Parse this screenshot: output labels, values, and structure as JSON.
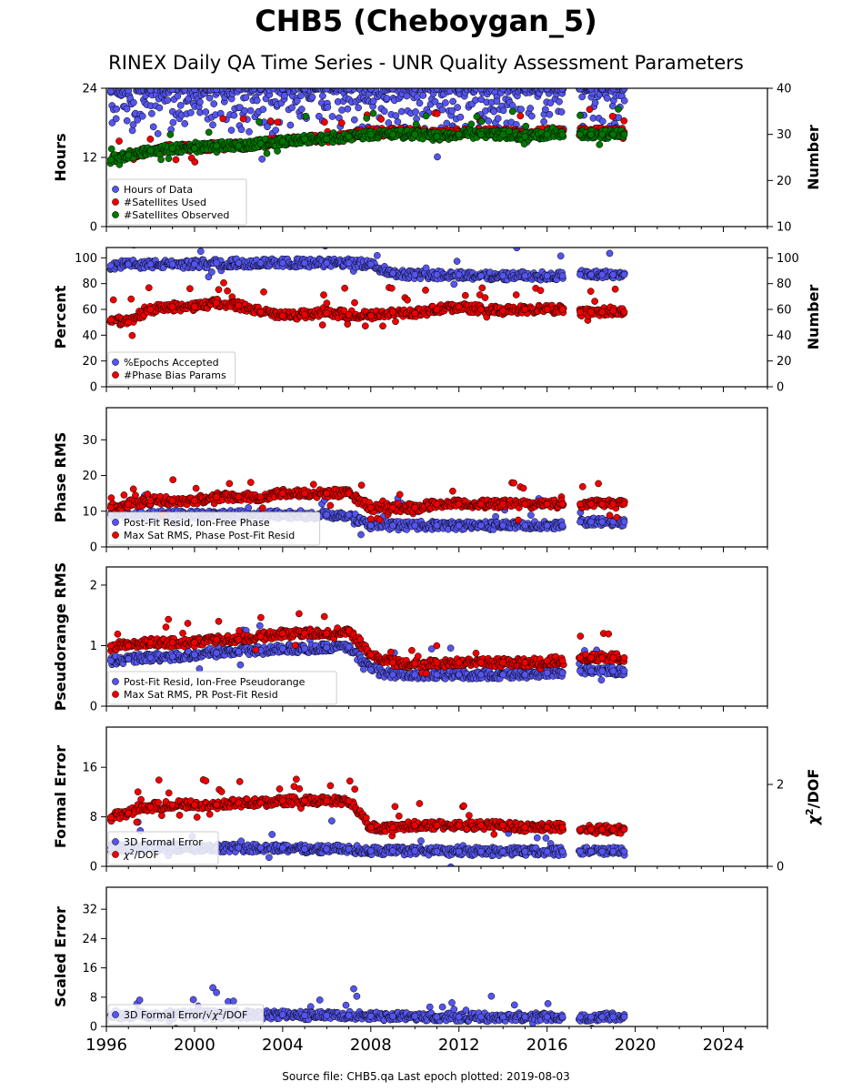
{
  "title": "CHB5 (Cheboygan_5)",
  "subtitle": "RINEX Daily QA Time Series - UNR Quality Assessment Parameters",
  "footer": "Source file: CHB5.qa Last epoch plotted: 2019-08-03",
  "colors": {
    "blue": "#5555ee",
    "red": "#ee0000",
    "green": "#007700"
  },
  "chart_data": [
    {
      "type": "scatter",
      "x_axis": {
        "range": [
          1996,
          2026
        ],
        "ticks": [
          1996,
          2000,
          2004,
          2008,
          2012,
          2016,
          2020,
          2024
        ]
      },
      "ylabel": "Hours",
      "ylim": [
        0,
        24
      ],
      "yticks": [
        0,
        12,
        24
      ],
      "ylabel_right": "Number",
      "ylim_right": [
        10,
        40
      ],
      "yticks_right": [
        10,
        20,
        30,
        40
      ],
      "legend": "lower-left",
      "series": [
        {
          "name": "Hours of Data",
          "color": "#5555ee",
          "axis": "left",
          "x": [
            1996.2,
            1997.0,
            1998.0,
            1999.0,
            2000.0,
            2001.0,
            2002.0,
            2003.0,
            2004.0,
            2005.0,
            2006.0,
            2007.0,
            2008.0,
            2009.0,
            2010.0,
            2011.0,
            2012.0,
            2013.0,
            2014.0,
            2015.0,
            2016.0,
            2016.7,
            2017.5,
            2018.0,
            2018.5,
            2019.0,
            2019.5
          ],
          "y": [
            23.5,
            23.6,
            23.7,
            23.8,
            23.8,
            23.8,
            23.9,
            23.9,
            23.9,
            23.9,
            23.9,
            23.9,
            23.9,
            23.9,
            23.9,
            23.9,
            23.9,
            23.9,
            23.9,
            23.9,
            23.9,
            23.9,
            23.9,
            23.9,
            23.9,
            23.9,
            23.9
          ]
        },
        {
          "name": "#Satellites Used",
          "color": "#ee0000",
          "axis": "right",
          "x": [
            1996.2,
            1997.0,
            1998.0,
            1999.0,
            2000.0,
            2001.0,
            2002.0,
            2003.0,
            2004.0,
            2005.0,
            2006.0,
            2007.0,
            2008.0,
            2009.0,
            2010.0,
            2011.0,
            2012.0,
            2013.0,
            2014.0,
            2015.0,
            2016.0,
            2016.7,
            2017.5,
            2018.0,
            2018.5,
            2019.0,
            2019.5
          ],
          "y": [
            24.5,
            25.5,
            26.5,
            27.0,
            27.0,
            27.5,
            27.5,
            28.0,
            28.5,
            29.0,
            29.0,
            29.5,
            30.5,
            30.5,
            30.5,
            30.0,
            30.5,
            30.5,
            30.5,
            30.0,
            30.5,
            30.5,
            30.5,
            30.5,
            30.5,
            30.5,
            30.5
          ]
        },
        {
          "name": "#Satellites Observed",
          "color": "#007700",
          "axis": "right",
          "x": [
            1996.2,
            1997.0,
            1998.0,
            1999.0,
            2000.0,
            2001.0,
            2002.0,
            2003.0,
            2004.0,
            2005.0,
            2006.0,
            2007.0,
            2008.0,
            2009.0,
            2010.0,
            2011.0,
            2012.0,
            2013.0,
            2014.0,
            2015.0,
            2016.0,
            2016.7,
            2017.5,
            2018.0,
            2018.5,
            2019.0,
            2019.5
          ],
          "y": [
            24.5,
            25.5,
            26.5,
            27.0,
            27.0,
            27.5,
            27.5,
            28.0,
            28.5,
            29.0,
            29.0,
            29.5,
            30.0,
            30.0,
            30.0,
            29.5,
            30.0,
            30.0,
            30.0,
            29.5,
            30.0,
            30.0,
            30.0,
            30.0,
            30.0,
            30.0,
            30.0
          ]
        }
      ]
    },
    {
      "type": "scatter",
      "ylabel": "Percent",
      "ylim": [
        0,
        108
      ],
      "yticks": [
        0,
        20,
        40,
        60,
        80,
        100
      ],
      "ylabel_right": "Number",
      "ylim_right": [
        0,
        108
      ],
      "yticks_right": [
        0,
        20,
        40,
        60,
        80,
        100
      ],
      "legend": "lower-left",
      "series": [
        {
          "name": "%Epochs Accepted",
          "color": "#5555ee",
          "axis": "left",
          "x": [
            1996.2,
            1997.0,
            1998.0,
            1999.0,
            2000.0,
            2001.0,
            2002.0,
            2003.0,
            2004.0,
            2005.0,
            2006.0,
            2007.0,
            2008.0,
            2009.0,
            2010.0,
            2011.0,
            2012.0,
            2013.0,
            2014.0,
            2015.0,
            2016.0,
            2016.7,
            2017.5,
            2018.0,
            2018.5,
            2019.0,
            2019.5
          ],
          "y": [
            94,
            95,
            95,
            95,
            95,
            96,
            96,
            96,
            96,
            96,
            96,
            96,
            95,
            88,
            87,
            87,
            87,
            86,
            86,
            86,
            86,
            86,
            87,
            87,
            87,
            87,
            87
          ]
        },
        {
          "name": "#Phase Bias Params",
          "color": "#ee0000",
          "axis": "right",
          "x": [
            1996.2,
            1997.0,
            1998.0,
            1999.0,
            2000.0,
            2001.0,
            2002.0,
            2003.0,
            2004.0,
            2005.0,
            2006.0,
            2007.0,
            2008.0,
            2009.0,
            2010.0,
            2011.0,
            2012.0,
            2013.0,
            2014.0,
            2015.0,
            2016.0,
            2016.7,
            2017.5,
            2018.0,
            2018.5,
            2019.0,
            2019.5
          ],
          "y": [
            52,
            50,
            60,
            62,
            62,
            65,
            63,
            58,
            55,
            56,
            57,
            56,
            55,
            58,
            57,
            60,
            62,
            60,
            59,
            60,
            60,
            60,
            58,
            58,
            58,
            59,
            58
          ]
        }
      ]
    },
    {
      "type": "scatter",
      "ylabel": "Phase RMS",
      "ylim": [
        0,
        39
      ],
      "yticks": [
        0,
        10,
        20,
        30
      ],
      "legend": "lower-left",
      "series": [
        {
          "name": "Post-Fit Resid, Ion-Free Phase",
          "color": "#5555ee",
          "x": [
            1996.2,
            1997.0,
            1998.0,
            1999.0,
            2000.0,
            2001.0,
            2002.0,
            2003.0,
            2004.0,
            2005.0,
            2006.0,
            2007.0,
            2008.0,
            2009.0,
            2010.0,
            2011.0,
            2012.0,
            2013.0,
            2014.0,
            2015.0,
            2016.0,
            2016.7,
            2017.5,
            2018.0,
            2018.5,
            2019.0,
            2019.5
          ],
          "y": [
            9,
            9,
            9,
            9,
            9,
            9,
            9,
            9,
            9,
            9,
            9,
            9,
            6,
            6,
            6,
            6,
            6,
            6,
            6,
            6,
            6,
            6,
            7,
            7,
            7,
            7,
            7
          ]
        },
        {
          "name": "Max Sat RMS, Phase Post-Fit Resid",
          "color": "#ee0000",
          "x": [
            1996.2,
            1997.0,
            1998.0,
            1999.0,
            2000.0,
            2001.0,
            2002.0,
            2003.0,
            2004.0,
            2005.0,
            2006.0,
            2007.0,
            2008.0,
            2009.0,
            2010.0,
            2011.0,
            2012.0,
            2013.0,
            2014.0,
            2015.0,
            2016.0,
            2016.7,
            2017.5,
            2018.0,
            2018.5,
            2019.0,
            2019.5
          ],
          "y": [
            11,
            12,
            13,
            13,
            13,
            14,
            14,
            14,
            15,
            15,
            15,
            15,
            11,
            11,
            11,
            12,
            12,
            12,
            12,
            12,
            12,
            12,
            12,
            12,
            12,
            12,
            12
          ]
        }
      ]
    },
    {
      "type": "scatter",
      "ylabel": "Pseudorange RMS",
      "ylim": [
        0,
        2.3
      ],
      "yticks": [
        0,
        1,
        2
      ],
      "legend": "lower-left",
      "series": [
        {
          "name": "Post-Fit Resid, Ion-Free Pseudorange",
          "color": "#5555ee",
          "x": [
            1996.2,
            1997.0,
            1998.0,
            1999.0,
            2000.0,
            2001.0,
            2002.0,
            2003.0,
            2004.0,
            2005.0,
            2006.0,
            2007.0,
            2008.0,
            2009.0,
            2010.0,
            2011.0,
            2012.0,
            2013.0,
            2014.0,
            2015.0,
            2016.0,
            2016.7,
            2017.5,
            2018.0,
            2018.5,
            2019.0,
            2019.5
          ],
          "y": [
            0.75,
            0.78,
            0.8,
            0.82,
            0.85,
            0.88,
            0.9,
            0.92,
            0.95,
            0.95,
            0.97,
            0.98,
            0.6,
            0.52,
            0.52,
            0.52,
            0.52,
            0.52,
            0.52,
            0.52,
            0.55,
            0.55,
            0.58,
            0.58,
            0.58,
            0.58,
            0.58
          ]
        },
        {
          "name": "Max Sat RMS, PR Post-Fit Resid",
          "color": "#ee0000",
          "x": [
            1996.2,
            1997.0,
            1998.0,
            1999.0,
            2000.0,
            2001.0,
            2002.0,
            2003.0,
            2004.0,
            2005.0,
            2006.0,
            2007.0,
            2008.0,
            2009.0,
            2010.0,
            2011.0,
            2012.0,
            2013.0,
            2014.0,
            2015.0,
            2016.0,
            2016.7,
            2017.5,
            2018.0,
            2018.5,
            2019.0,
            2019.5
          ],
          "y": [
            1.0,
            1.0,
            1.05,
            1.05,
            1.05,
            1.1,
            1.1,
            1.15,
            1.2,
            1.2,
            1.2,
            1.25,
            0.85,
            0.72,
            0.7,
            0.72,
            0.72,
            0.72,
            0.72,
            0.72,
            0.75,
            0.75,
            0.8,
            0.8,
            0.8,
            0.8,
            0.8
          ]
        }
      ]
    },
    {
      "type": "scatter",
      "ylabel": "Formal Error",
      "ylim": [
        0,
        22.5
      ],
      "yticks": [
        0,
        8,
        16
      ],
      "ylabel_right": "χ²/DOF",
      "ylim_right": [
        0,
        3.4
      ],
      "yticks_right": [
        0,
        2
      ],
      "legend": "lower-left",
      "series": [
        {
          "name": "3D Formal Error",
          "color": "#5555ee",
          "axis": "left",
          "x": [
            1996.2,
            1997.0,
            1998.0,
            1999.0,
            2000.0,
            2001.0,
            2002.0,
            2003.0,
            2004.0,
            2005.0,
            2006.0,
            2007.0,
            2008.0,
            2009.0,
            2010.0,
            2011.0,
            2012.0,
            2013.0,
            2014.0,
            2015.0,
            2016.0,
            2016.7,
            2017.5,
            2018.0,
            2018.5,
            2019.0,
            2019.5
          ],
          "y": [
            3.0,
            3.0,
            3.0,
            3.0,
            3.0,
            3.0,
            3.0,
            3.0,
            3.0,
            2.8,
            2.8,
            2.8,
            2.5,
            2.5,
            2.5,
            2.4,
            2.4,
            2.4,
            2.4,
            2.4,
            2.4,
            2.4,
            2.4,
            2.4,
            2.4,
            2.4,
            2.4
          ]
        },
        {
          "name": "χ²/DOF",
          "color": "#ee0000",
          "axis": "right",
          "x": [
            1996.2,
            1997.0,
            1998.0,
            1999.0,
            2000.0,
            2001.0,
            2002.0,
            2003.0,
            2004.0,
            2005.0,
            2006.0,
            2007.0,
            2008.0,
            2009.0,
            2010.0,
            2011.0,
            2012.0,
            2013.0,
            2014.0,
            2015.0,
            2016.0,
            2016.7,
            2017.5,
            2018.0,
            2018.5,
            2019.0,
            2019.5
          ],
          "y": [
            1.2,
            1.3,
            1.45,
            1.5,
            1.5,
            1.5,
            1.55,
            1.55,
            1.6,
            1.6,
            1.6,
            1.6,
            0.95,
            0.95,
            1.0,
            1.0,
            1.0,
            1.0,
            1.0,
            0.95,
            0.95,
            0.95,
            0.9,
            0.9,
            0.9,
            0.9,
            0.9
          ]
        }
      ]
    },
    {
      "type": "scatter",
      "ylabel": "Scaled Error",
      "ylim": [
        0,
        38
      ],
      "yticks": [
        0,
        8,
        16,
        24,
        32
      ],
      "legend": "lower-left",
      "series": [
        {
          "name": "3D Formal Error/√χ²/DOF",
          "color": "#5555ee",
          "x": [
            1996.2,
            1997.0,
            1998.0,
            1999.0,
            2000.0,
            2001.0,
            2002.0,
            2003.0,
            2004.0,
            2005.0,
            2006.0,
            2007.0,
            2008.0,
            2009.0,
            2010.0,
            2011.0,
            2012.0,
            2013.0,
            2014.0,
            2015.0,
            2016.0,
            2016.7,
            2017.5,
            2018.0,
            2018.5,
            2019.0,
            2019.5
          ],
          "y": [
            3.2,
            3.2,
            3.2,
            3.2,
            3.2,
            3.2,
            3.2,
            3.2,
            3.2,
            3.0,
            3.0,
            3.0,
            2.8,
            2.8,
            2.8,
            2.6,
            2.6,
            2.6,
            2.6,
            2.6,
            2.6,
            2.6,
            2.6,
            2.6,
            2.6,
            2.6,
            2.6
          ]
        }
      ]
    }
  ]
}
